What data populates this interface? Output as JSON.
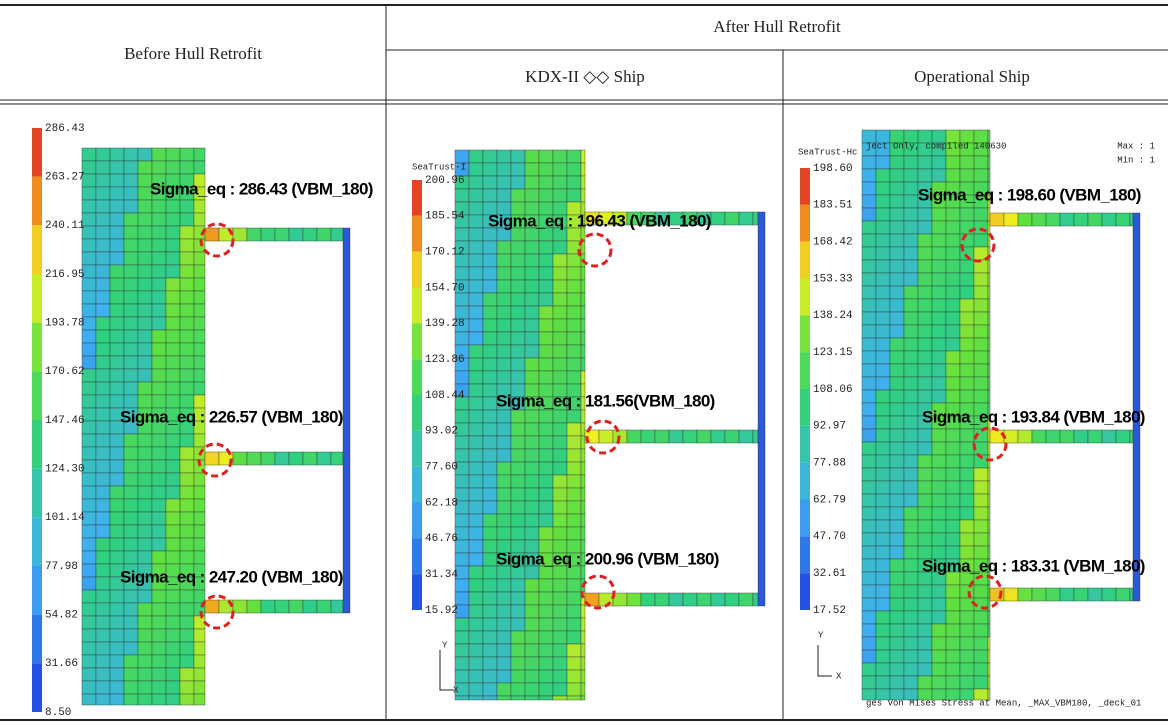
{
  "header": {
    "before": "Before Hull Retrofit",
    "after": "After Hull Retrofit",
    "sub": [
      "KDX-II ◇◇ Ship",
      "Operational Ship"
    ]
  },
  "panels": [
    {
      "legend": [
        "286.43",
        "263.27",
        "240.11",
        "216.95",
        "193.78",
        "170.62",
        "147.46",
        "124.30",
        "101.14",
        "77.98",
        "54.82",
        "31.66",
        "8.50"
      ],
      "annotations": [
        "Sigma_eq : 286.43 (VBM_180)",
        "Sigma_eq : 226.57 (VBM_180)",
        "Sigma_eq : 247.20 (VBM_180)"
      ]
    },
    {
      "program": "SeaTrust-I",
      "legend": [
        "200.96",
        "185.54",
        "170.12",
        "154.70",
        "139.28",
        "123.86",
        "108.44",
        "93.02",
        "77.60",
        "62.18",
        "46.76",
        "31.34",
        "15.92"
      ],
      "annotations": [
        "Sigma_eq : 196.43 (VBM_180)",
        "Sigma_eq : 181.56(VBM_180)",
        "Sigma_eq : 200.96 (VBM_180)"
      ],
      "axis_y": "Y",
      "axis_x": "X"
    },
    {
      "program": "SeaTrust-Hc",
      "note": "ject Only, compiled 140630",
      "max": "Max : 1",
      "min": "Min : 1",
      "legend": [
        "198.60",
        "183.51",
        "168.42",
        "153.33",
        "138.24",
        "123.15",
        "108.06",
        "92.97",
        "77.88",
        "62.79",
        "47.70",
        "32.61",
        "17.52"
      ],
      "annotations": [
        "Sigma_eq : 198.60 (VBM_180)",
        "Sigma_eq : 193.84 (VBM_180)",
        "Sigma_eq : 183.31 (VBM_180)"
      ],
      "axis_y": "Y",
      "axis_x": "X",
      "footer": "ges Von Mises Stress at Mean,  _MAX_VBM180,  _deck_01"
    }
  ]
}
